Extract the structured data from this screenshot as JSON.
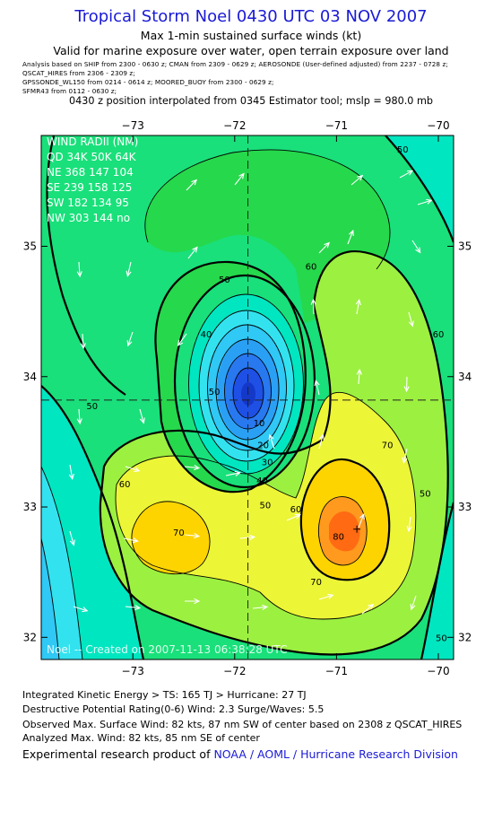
{
  "header": {
    "title": "Tropical Storm Noel 0430 UTC 03 NOV 2007",
    "subtitle1": "Max 1-min sustained surface winds (kt)",
    "subtitle2": "Valid for marine exposure over water, open terrain exposure over land",
    "sources": [
      "Analysis based on  SHIP from 2300 - 0630 z;  CMAN from 2309 - 0629 z;  AEROSONDE (User-defined adjusted) from 2237 - 0728 z;",
      "QSCAT_HIRES from 2306 - 2309 z;",
      "GPSSONDE_WL150 from 0214 - 0614 z;   MOORED_BUOY from 2300 - 0629 z;",
      "SFMR43 from 0112 - 0630 z;"
    ],
    "position_note": "0430 z position interpolated from 0345 Estimator tool; mslp = 980.0 mb"
  },
  "chart_data": {
    "type": "heatmap",
    "xlim": [
      -73.9,
      -69.85
    ],
    "ylim": [
      31.83,
      35.85
    ],
    "x_ticks": [
      -73,
      -72,
      -71,
      -70
    ],
    "x_tick_labels": [
      "−73",
      "−72",
      "−71",
      "−70"
    ],
    "y_ticks": [
      32,
      33,
      34,
      35
    ],
    "y_tick_labels": [
      "32",
      "33",
      "34",
      "35"
    ],
    "center": {
      "lon": -71.87,
      "lat": 33.82
    },
    "max_wind_marker": {
      "lon": -70.8,
      "lat": 32.83
    },
    "contour_interval_kt": 5,
    "labeled_contours": [
      {
        "value": "10",
        "lon": -71.76,
        "lat": 33.62
      },
      {
        "value": "20",
        "lon": -71.72,
        "lat": 33.45
      },
      {
        "value": "30",
        "lon": -71.68,
        "lat": 33.32
      },
      {
        "value": "40",
        "lon": -71.73,
        "lat": 33.18
      },
      {
        "value": "40",
        "lon": -72.28,
        "lat": 34.3
      },
      {
        "value": "50",
        "lon": -72.2,
        "lat": 33.86
      },
      {
        "value": "50",
        "lon": -71.7,
        "lat": 32.99
      },
      {
        "value": "50",
        "lon": -72.1,
        "lat": 34.72
      },
      {
        "value": "60",
        "lon": -71.4,
        "lat": 32.96
      },
      {
        "value": "60",
        "lon": -71.25,
        "lat": 34.82
      },
      {
        "value": "60",
        "lon": -70.0,
        "lat": 34.3
      },
      {
        "value": "60",
        "lon": -73.08,
        "lat": 33.15
      },
      {
        "value": "50",
        "lon": -70.13,
        "lat": 33.08
      },
      {
        "value": "50",
        "lon": -73.4,
        "lat": 33.75
      },
      {
        "value": "50",
        "lon": -70.35,
        "lat": 35.72
      },
      {
        "value": "50",
        "lon": -69.97,
        "lat": 31.97
      },
      {
        "value": "70",
        "lon": -72.55,
        "lat": 32.78
      },
      {
        "value": "70",
        "lon": -70.5,
        "lat": 33.45
      },
      {
        "value": "70",
        "lon": -71.2,
        "lat": 32.4
      },
      {
        "value": "80",
        "lon": -70.98,
        "lat": 32.75
      }
    ],
    "wind_radii": {
      "title": "WIND RADII (NM)",
      "header": "QD 34K 50K 64K",
      "rows": [
        "NE 368 147 104",
        "SE 239 158 125",
        "SW 182 134  95",
        "NW 303 144  no"
      ]
    },
    "credit_text": "Noel -- Created on 2007-11-13 06:38:28 UTC",
    "colors": {
      "lt10": "#1e50e6",
      "10": "#2878f0",
      "20": "#2aa0f5",
      "30": "#30c8f5",
      "40": "#33e2ef",
      "50": "#00e6c0",
      "55": "#19e07a",
      "60": "#26d84c",
      "65": "#9cf040",
      "70": "#ecf536",
      "75": "#fdd400",
      "80": "#ff9a1e",
      "85": "#ff6a12",
      "center_line": "#222222",
      "contour": "#000000",
      "title_blue": "#1a1ad6"
    }
  },
  "footer": {
    "ike": "Integrated Kinetic Energy > TS: 165 TJ   > Hurricane: 27 TJ",
    "dpr": "Destructive Potential Rating(0-6)   Wind: 2.3 Surge/Waves: 5.5",
    "observed": "Observed Max. Surface Wind: 82 kts, 87 nm SW of center based on 2308 z QSCAT_HIRES",
    "analyzed": "Analyzed Max. Wind: 82 kts, 85 nm SE of center",
    "product_prefix": "Experimental research product of ",
    "product_org": "NOAA / AOML / Hurricane Research Division"
  }
}
